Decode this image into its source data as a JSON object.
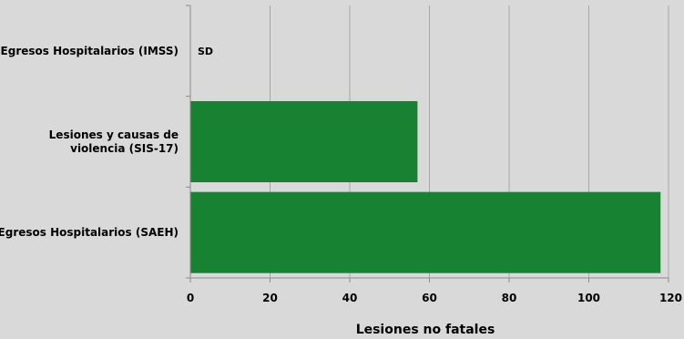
{
  "chart_data": {
    "type": "bar",
    "orientation": "horizontal",
    "categories": [
      [
        "Egresos Hospitalarios (IMSS)"
      ],
      [
        "Lesiones y causas de",
        "violencia (SIS-17)"
      ],
      [
        "Egresos Hospitalarios (SAEH)"
      ]
    ],
    "values": [
      null,
      57,
      118
    ],
    "annotations": [
      "SD",
      "",
      ""
    ],
    "xlabel": "Lesiones no fatales",
    "xlim": [
      0,
      120
    ],
    "xticks": [
      "0",
      "20",
      "40",
      "60",
      "80",
      "100",
      "120"
    ],
    "grid": "vertical",
    "colors": {
      "bar": "#168232",
      "background": "#d9d9d9",
      "grid": "#a6a6a6"
    }
  }
}
